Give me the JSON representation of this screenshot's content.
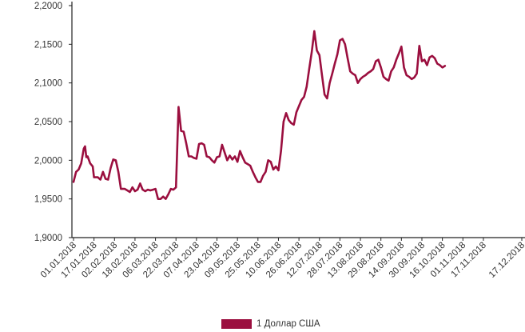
{
  "chart_data": {
    "type": "line",
    "title": "",
    "xlabel": "",
    "ylabel": "",
    "ylim": [
      1.9,
      2.2
    ],
    "yticks": [
      1.9,
      1.95,
      2.0,
      2.05,
      2.1,
      2.15,
      2.2
    ],
    "ytick_labels": [
      "1,9000",
      "1,9500",
      "2,0000",
      "2,0500",
      "2,1000",
      "2,1500",
      "2,2000"
    ],
    "xtick_labels": [
      "01.01.2018",
      "17.01.2018",
      "02.02.2018",
      "18.02.2018",
      "06.03.2018",
      "22.03.2018",
      "07.04.2018",
      "23.04.2018",
      "09.05.2018",
      "25.05.2018",
      "10.06.2018",
      "26.06.2018",
      "12.07.2018",
      "28.07.2018",
      "13.08.2018",
      "29.08.2018",
      "14.09.2018",
      "30.09.2018",
      "16.10.2018",
      "01.11.2018",
      "17.11.2018",
      "17.12.2018"
    ],
    "grid": false,
    "legend_position": "bottom",
    "series_color": "#9b0f3f",
    "series": [
      {
        "name": "1 Доллар США",
        "points": [
          [
            "01.01.2018",
            1.972
          ],
          [
            "03.01.2018",
            1.985
          ],
          [
            "05.01.2018",
            1.988
          ],
          [
            "07.01.2018",
            1.996
          ],
          [
            "09.01.2018",
            2.015
          ],
          [
            "10.01.2018",
            2.018
          ],
          [
            "11.01.2018",
            2.004
          ],
          [
            "12.01.2018",
            2.005
          ],
          [
            "14.01.2018",
            1.996
          ],
          [
            "16.01.2018",
            1.992
          ],
          [
            "17.01.2018",
            1.978
          ],
          [
            "20.01.2018",
            1.978
          ],
          [
            "22.01.2018",
            1.975
          ],
          [
            "24.01.2018",
            1.985
          ],
          [
            "26.01.2018",
            1.976
          ],
          [
            "28.01.2018",
            1.975
          ],
          [
            "30.01.2018",
            1.99
          ],
          [
            "01.02.2018",
            2.001
          ],
          [
            "03.02.2018",
            2.0
          ],
          [
            "05.02.2018",
            1.985
          ],
          [
            "07.02.2018",
            1.963
          ],
          [
            "10.02.2018",
            1.963
          ],
          [
            "12.02.2018",
            1.961
          ],
          [
            "14.02.2018",
            1.959
          ],
          [
            "16.02.2018",
            1.965
          ],
          [
            "18.02.2018",
            1.96
          ],
          [
            "20.02.2018",
            1.962
          ],
          [
            "22.02.2018",
            1.97
          ],
          [
            "24.02.2018",
            1.962
          ],
          [
            "26.02.2018",
            1.96
          ],
          [
            "28.02.2018",
            1.962
          ],
          [
            "02.03.2018",
            1.961
          ],
          [
            "04.03.2018",
            1.962
          ],
          [
            "06.03.2018",
            1.963
          ],
          [
            "08.03.2018",
            1.95
          ],
          [
            "10.03.2018",
            1.95
          ],
          [
            "12.03.2018",
            1.953
          ],
          [
            "14.03.2018",
            1.95
          ],
          [
            "16.03.2018",
            1.956
          ],
          [
            "18.03.2018",
            1.963
          ],
          [
            "20.03.2018",
            1.962
          ],
          [
            "22.03.2018",
            1.965
          ],
          [
            "24.03.2018",
            2.069
          ],
          [
            "26.03.2018",
            2.038
          ],
          [
            "28.03.2018",
            2.037
          ],
          [
            "30.03.2018",
            2.022
          ],
          [
            "01.04.2018",
            2.005
          ],
          [
            "03.04.2018",
            2.005
          ],
          [
            "05.04.2018",
            2.003
          ],
          [
            "07.04.2018",
            2.002
          ],
          [
            "09.04.2018",
            2.021
          ],
          [
            "11.04.2018",
            2.022
          ],
          [
            "13.04.2018",
            2.02
          ],
          [
            "15.04.2018",
            2.005
          ],
          [
            "17.04.2018",
            2.004
          ],
          [
            "19.04.2018",
            2.0
          ],
          [
            "21.04.2018",
            1.997
          ],
          [
            "23.04.2018",
            2.004
          ],
          [
            "25.04.2018",
            2.005
          ],
          [
            "27.04.2018",
            2.02
          ],
          [
            "29.04.2018",
            2.01
          ],
          [
            "01.05.2018",
            2.0
          ],
          [
            "03.05.2018",
            2.006
          ],
          [
            "05.05.2018",
            2.001
          ],
          [
            "07.05.2018",
            2.005
          ],
          [
            "09.05.2018",
            1.998
          ],
          [
            "11.05.2018",
            2.012
          ],
          [
            "13.05.2018",
            2.004
          ],
          [
            "15.05.2018",
            1.997
          ],
          [
            "17.05.2018",
            1.995
          ],
          [
            "19.05.2018",
            1.993
          ],
          [
            "21.05.2018",
            1.985
          ],
          [
            "23.05.2018",
            1.978
          ],
          [
            "25.05.2018",
            1.972
          ],
          [
            "27.05.2018",
            1.972
          ],
          [
            "29.05.2018",
            1.98
          ],
          [
            "31.05.2018",
            1.985
          ],
          [
            "02.06.2018",
            2.0
          ],
          [
            "04.06.2018",
            1.998
          ],
          [
            "06.06.2018",
            1.988
          ],
          [
            "08.06.2018",
            1.992
          ],
          [
            "10.06.2018",
            1.987
          ],
          [
            "12.06.2018",
            2.012
          ],
          [
            "14.06.2018",
            2.05
          ],
          [
            "16.06.2018",
            2.061
          ],
          [
            "18.06.2018",
            2.052
          ],
          [
            "20.06.2018",
            2.048
          ],
          [
            "22.06.2018",
            2.046
          ],
          [
            "24.06.2018",
            2.062
          ],
          [
            "26.06.2018",
            2.07
          ],
          [
            "28.06.2018",
            2.078
          ],
          [
            "30.06.2018",
            2.082
          ],
          [
            "02.07.2018",
            2.095
          ],
          [
            "04.07.2018",
            2.118
          ],
          [
            "06.07.2018",
            2.14
          ],
          [
            "08.07.2018",
            2.167
          ],
          [
            "10.07.2018",
            2.142
          ],
          [
            "12.07.2018",
            2.136
          ],
          [
            "14.07.2018",
            2.11
          ],
          [
            "16.07.2018",
            2.085
          ],
          [
            "18.07.2018",
            2.08
          ],
          [
            "20.07.2018",
            2.1
          ],
          [
            "22.07.2018",
            2.112
          ],
          [
            "24.07.2018",
            2.125
          ],
          [
            "26.07.2018",
            2.137
          ],
          [
            "28.07.2018",
            2.155
          ],
          [
            "30.07.2018",
            2.157
          ],
          [
            "01.08.2018",
            2.15
          ],
          [
            "03.08.2018",
            2.132
          ],
          [
            "05.08.2018",
            2.115
          ],
          [
            "07.08.2018",
            2.112
          ],
          [
            "09.08.2018",
            2.11
          ],
          [
            "11.08.2018",
            2.1
          ],
          [
            "13.08.2018",
            2.105
          ],
          [
            "15.08.2018",
            2.108
          ],
          [
            "17.08.2018",
            2.11
          ],
          [
            "19.08.2018",
            2.113
          ],
          [
            "21.08.2018",
            2.115
          ],
          [
            "23.08.2018",
            2.118
          ],
          [
            "25.08.2018",
            2.128
          ],
          [
            "27.08.2018",
            2.13
          ],
          [
            "29.08.2018",
            2.12
          ],
          [
            "31.08.2018",
            2.108
          ],
          [
            "02.09.2018",
            2.105
          ],
          [
            "04.09.2018",
            2.103
          ],
          [
            "06.09.2018",
            2.115
          ],
          [
            "08.09.2018",
            2.12
          ],
          [
            "10.09.2018",
            2.13
          ],
          [
            "12.09.2018",
            2.138
          ],
          [
            "14.09.2018",
            2.147
          ],
          [
            "16.09.2018",
            2.12
          ],
          [
            "18.09.2018",
            2.11
          ],
          [
            "20.09.2018",
            2.108
          ],
          [
            "22.09.2018",
            2.105
          ],
          [
            "24.09.2018",
            2.107
          ],
          [
            "26.09.2018",
            2.112
          ],
          [
            "28.09.2018",
            2.148
          ],
          [
            "30.09.2018",
            2.128
          ],
          [
            "02.10.2018",
            2.13
          ],
          [
            "04.10.2018",
            2.123
          ],
          [
            "06.10.2018",
            2.133
          ],
          [
            "08.10.2018",
            2.135
          ],
          [
            "10.10.2018",
            2.132
          ],
          [
            "12.10.2018",
            2.125
          ],
          [
            "14.10.2018",
            2.123
          ],
          [
            "16.10.2018",
            2.12
          ],
          [
            "18.10.2018",
            2.122
          ]
        ]
      }
    ]
  }
}
